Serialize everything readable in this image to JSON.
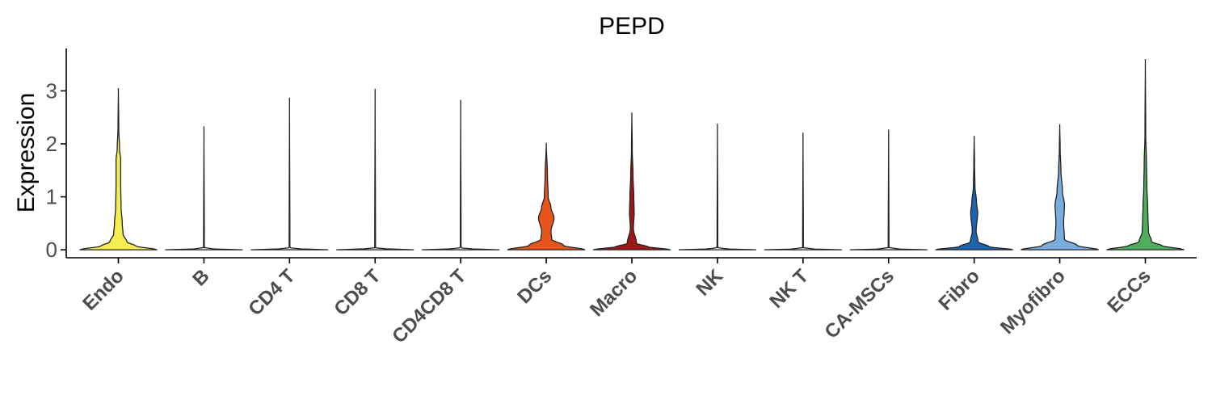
{
  "chart_data": {
    "type": "violin",
    "title": "PEPD",
    "ylabel": "Expression",
    "xlabel": "",
    "ylim": [
      -0.15,
      3.8
    ],
    "yticks": [
      0,
      1,
      2,
      3
    ],
    "grid": false,
    "legend": "none",
    "categories": [
      "Endo",
      "B",
      "CD4 T",
      "CD8 T",
      "CD4CD8 T",
      "DCs",
      "Macro",
      "NK",
      "NK T",
      "CA-MSCs",
      "Fibro",
      "Myofibro",
      "ECCs"
    ],
    "series": [
      {
        "category": "Endo",
        "max": 3.05,
        "color": "#F5EE4E",
        "profile": [
          [
            0,
            1
          ],
          [
            0.07,
            0.45
          ],
          [
            0.15,
            0.22
          ],
          [
            0.3,
            0.12
          ],
          [
            0.5,
            0.1
          ],
          [
            0.8,
            0.07
          ],
          [
            1.2,
            0.06
          ],
          [
            1.7,
            0.06
          ],
          [
            1.9,
            0.03
          ],
          [
            2.3,
            0.01
          ],
          [
            3.05,
            0
          ]
        ]
      },
      {
        "category": "B",
        "max": 2.33,
        "color": "#E8E8E8",
        "profile": [
          [
            0,
            1
          ],
          [
            0.015,
            0.3
          ],
          [
            0.04,
            0.01
          ],
          [
            2.33,
            0
          ]
        ]
      },
      {
        "category": "CD4 T",
        "max": 2.87,
        "color": "#E8E8E8",
        "profile": [
          [
            0,
            1
          ],
          [
            0.015,
            0.3
          ],
          [
            0.04,
            0.01
          ],
          [
            2.87,
            0
          ]
        ]
      },
      {
        "category": "CD8 T",
        "max": 3.04,
        "color": "#E8E8E8",
        "profile": [
          [
            0,
            1
          ],
          [
            0.015,
            0.3
          ],
          [
            0.04,
            0.01
          ],
          [
            3.04,
            0
          ]
        ]
      },
      {
        "category": "CD4CD8 T",
        "max": 2.83,
        "color": "#E8E8E8",
        "profile": [
          [
            0,
            1
          ],
          [
            0.015,
            0.3
          ],
          [
            0.04,
            0.01
          ],
          [
            2.83,
            0
          ]
        ]
      },
      {
        "category": "DCs",
        "max": 2.02,
        "color": "#E8541C",
        "profile": [
          [
            0,
            1
          ],
          [
            0.08,
            0.45
          ],
          [
            0.2,
            0.14
          ],
          [
            0.35,
            0.12
          ],
          [
            0.6,
            0.2
          ],
          [
            0.8,
            0.12
          ],
          [
            1.0,
            0.05
          ],
          [
            1.4,
            0.03
          ],
          [
            2.02,
            0
          ]
        ]
      },
      {
        "category": "Macro",
        "max": 2.59,
        "color": "#A01717",
        "profile": [
          [
            0,
            1
          ],
          [
            0.06,
            0.4
          ],
          [
            0.12,
            0.12
          ],
          [
            0.4,
            0.04
          ],
          [
            0.7,
            0.06
          ],
          [
            1.0,
            0.05
          ],
          [
            1.4,
            0.03
          ],
          [
            1.9,
            0.01
          ],
          [
            2.59,
            0
          ]
        ]
      },
      {
        "category": "NK",
        "max": 2.38,
        "color": "#E8E8E8",
        "profile": [
          [
            0,
            1
          ],
          [
            0.015,
            0.3
          ],
          [
            0.04,
            0.01
          ],
          [
            2.38,
            0
          ]
        ]
      },
      {
        "category": "NK T",
        "max": 2.21,
        "color": "#E8E8E8",
        "profile": [
          [
            0,
            1
          ],
          [
            0.015,
            0.3
          ],
          [
            0.04,
            0.01
          ],
          [
            2.21,
            0
          ]
        ]
      },
      {
        "category": "CA-MSCs",
        "max": 2.27,
        "color": "#E8E8E8",
        "profile": [
          [
            0,
            1
          ],
          [
            0.015,
            0.3
          ],
          [
            0.04,
            0.01
          ],
          [
            2.27,
            0
          ]
        ]
      },
      {
        "category": "Fibro",
        "max": 2.15,
        "color": "#1C63B0",
        "profile": [
          [
            0,
            1
          ],
          [
            0.06,
            0.38
          ],
          [
            0.15,
            0.1
          ],
          [
            0.35,
            0.05
          ],
          [
            0.7,
            0.09
          ],
          [
            0.9,
            0.06
          ],
          [
            1.2,
            0.02
          ],
          [
            1.6,
            0.01
          ],
          [
            2.15,
            0
          ]
        ]
      },
      {
        "category": "Myofibro",
        "max": 2.37,
        "color": "#7AADDF",
        "profile": [
          [
            0,
            1
          ],
          [
            0.08,
            0.45
          ],
          [
            0.2,
            0.12
          ],
          [
            0.5,
            0.1
          ],
          [
            0.85,
            0.12
          ],
          [
            1.1,
            0.07
          ],
          [
            1.5,
            0.03
          ],
          [
            1.9,
            0.01
          ],
          [
            2.37,
            0
          ]
        ]
      },
      {
        "category": "ECCs",
        "max": 3.6,
        "color": "#4DAE5B",
        "profile": [
          [
            0,
            1
          ],
          [
            0.08,
            0.42
          ],
          [
            0.15,
            0.16
          ],
          [
            0.35,
            0.08
          ],
          [
            0.55,
            0.07
          ],
          [
            0.8,
            0.06
          ],
          [
            1.2,
            0.04
          ],
          [
            1.6,
            0.03
          ],
          [
            2.2,
            0.01
          ],
          [
            3.6,
            0
          ]
        ]
      }
    ]
  }
}
